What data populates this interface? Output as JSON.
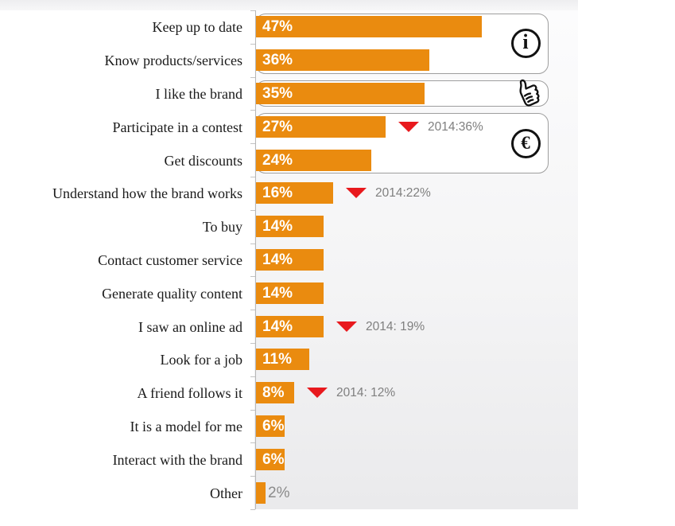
{
  "chart_data": {
    "type": "bar",
    "orientation": "horizontal",
    "title": "",
    "xlabel": "",
    "ylabel": "",
    "xlim": [
      0,
      67
    ],
    "grid": false,
    "legend": "none",
    "categories": [
      "Keep up to date",
      "Know products/services",
      "I like the brand",
      "Participate in a contest",
      "Get discounts",
      "Understand how the brand works",
      "To buy",
      "Contact customer service",
      "Generate quality content",
      "I saw an online ad",
      "Look for a job",
      "A friend follows it",
      "It is a model for me",
      "Interact with the brand",
      "Other"
    ],
    "values": [
      47,
      36,
      35,
      27,
      24,
      16,
      14,
      14,
      14,
      14,
      11,
      8,
      6,
      6,
      2
    ],
    "bar_labels": [
      "47%",
      "36%",
      "35%",
      "27%",
      "24%",
      "16%",
      "14%",
      "14%",
      "14%",
      "14%",
      "11%",
      "8%",
      "6%",
      "6%",
      "2%"
    ],
    "annotations": [
      {
        "row": 3,
        "text": "2014:36%",
        "marker": "down-triangle"
      },
      {
        "row": 5,
        "text": "2014:22%",
        "marker": "down-triangle"
      },
      {
        "row": 9,
        "text": "2014: 19%",
        "marker": "down-triangle"
      },
      {
        "row": 11,
        "text": "2014: 12%",
        "marker": "down-triangle"
      }
    ],
    "groups": [
      {
        "rows": [
          0,
          1
        ],
        "icon": "info-icon",
        "glyph": "i"
      },
      {
        "rows": [
          2
        ],
        "icon": "thumbs-up-icon",
        "glyph": ""
      },
      {
        "rows": [
          3,
          4
        ],
        "icon": "euro-icon",
        "glyph": "€"
      }
    ],
    "colors": {
      "bar": "#EA8B0F",
      "bar_label": "#FFFFFF",
      "outside_label": "#8A8A8A",
      "annotation_triangle": "#E8191D",
      "annotation_text": "#7F7F7F",
      "axis": "#B7B7B7",
      "box_border": "#9E9E9E",
      "icon": "#121212",
      "category_text": "#1A1A1A"
    }
  }
}
